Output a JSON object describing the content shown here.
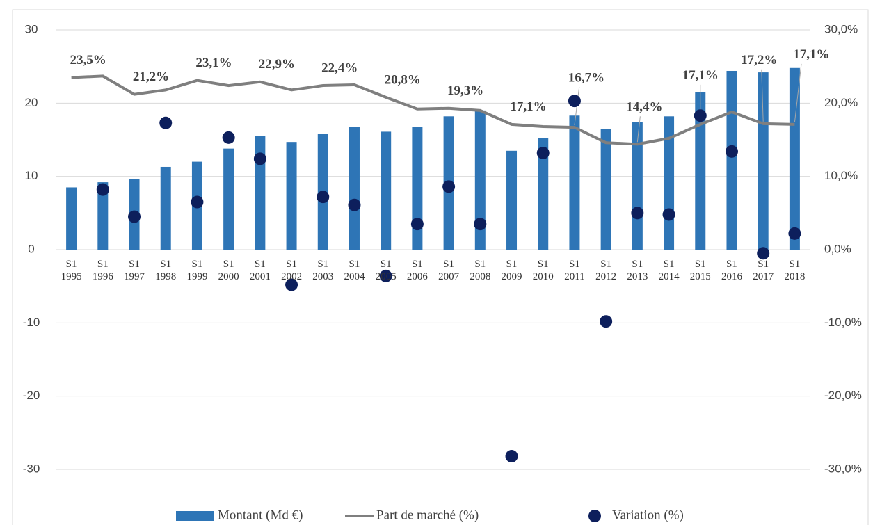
{
  "chart_data": {
    "type": "combo",
    "categories": [
      "S1\n1995",
      "S1\n1996",
      "S1\n1997",
      "S1\n1998",
      "S1\n1999",
      "S1\n2000",
      "S1\n2001",
      "S1\n2002",
      "S1\n2003",
      "S1\n2004",
      "S1\n2005",
      "S1\n2006",
      "S1\n2007",
      "S1\n2008",
      "S1\n2009",
      "S1\n2010",
      "S1\n2011",
      "S1\n2012",
      "S1\n2013",
      "S1\n2014",
      "S1\n2015",
      "S1\n2016",
      "S1\n2017",
      "S1\n2018"
    ],
    "series": [
      {
        "name": "Montant (Md €)",
        "type": "bar",
        "color": "#2e75b6",
        "values": [
          8.5,
          9.2,
          9.6,
          11.3,
          12.0,
          13.8,
          15.5,
          14.7,
          15.8,
          16.8,
          16.1,
          16.8,
          18.2,
          19.0,
          13.5,
          15.2,
          18.3,
          16.5,
          17.4,
          18.2,
          21.5,
          24.4,
          24.2,
          24.8
        ]
      },
      {
        "name": "Part de marché (%)",
        "type": "line",
        "axis": "y2",
        "color": "#7f7f7f",
        "values": [
          23.5,
          23.7,
          21.2,
          21.8,
          23.1,
          22.4,
          22.9,
          21.8,
          22.4,
          22.5,
          20.8,
          19.2,
          19.3,
          19.0,
          17.1,
          16.8,
          16.7,
          14.6,
          14.4,
          15.2,
          17.1,
          18.8,
          17.2,
          17.1
        ],
        "value_labels": [
          "23,5%",
          null,
          "21,2%",
          null,
          "23,1%",
          null,
          "22,9%",
          null,
          "22,4%",
          null,
          "20,8%",
          null,
          "19,3%",
          null,
          "17,1%",
          null,
          "16,7%",
          null,
          "14,4%",
          null,
          "17,1%",
          null,
          "17,2%",
          "17,1%"
        ]
      },
      {
        "name": "Variation (%)",
        "type": "scatter",
        "axis": "y2",
        "color": "#0d1f5c",
        "values": [
          null,
          8.2,
          4.5,
          17.3,
          6.5,
          15.3,
          12.4,
          -4.8,
          7.2,
          6.1,
          -3.6,
          3.5,
          8.6,
          3.5,
          -28.2,
          13.2,
          20.3,
          -9.8,
          5.0,
          4.8,
          18.3,
          13.4,
          -0.5,
          2.2
        ]
      }
    ],
    "ylim": [
      -30,
      30
    ],
    "yticks": [
      -30,
      -20,
      -10,
      0,
      10,
      20,
      30
    ],
    "y2lim": [
      -30,
      30
    ],
    "y2ticks": [
      {
        "value": -30,
        "label": "-30,0%"
      },
      {
        "value": -20,
        "label": "-20,0%"
      },
      {
        "value": -10,
        "label": "-10,0%"
      },
      {
        "value": 0,
        "label": "0,0%"
      },
      {
        "value": 10,
        "label": "10,0%"
      },
      {
        "value": 20,
        "label": "20,0%"
      },
      {
        "value": 30,
        "label": "30,0%"
      }
    ],
    "grid": true,
    "legend": "bottom"
  }
}
